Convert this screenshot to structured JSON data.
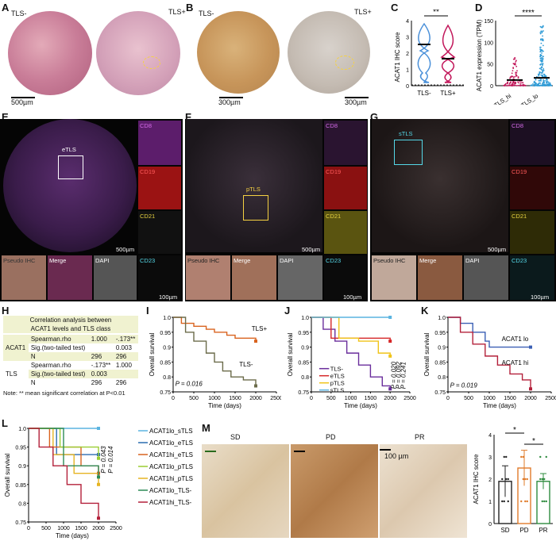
{
  "panels": {
    "A": {
      "label": "A",
      "left_title": "TLS-",
      "right_title": "TLS+",
      "scalebar": "500µm"
    },
    "B": {
      "label": "B",
      "left_title": "TLS-",
      "right_title": "TLS+",
      "scalebar_left": "300µm",
      "scalebar_right": "300µm"
    },
    "C": {
      "label": "C",
      "sig": "**"
    },
    "D": {
      "label": "D",
      "sig": "****"
    },
    "E": {
      "label": "E",
      "roi": "eTLS",
      "scale_main": "500µm",
      "scale_sub": "100µm",
      "sub_labels": [
        "CD8",
        "CD19",
        "CD21",
        "CD23",
        "Pseudo IHC",
        "Merge",
        "DAPI"
      ]
    },
    "F": {
      "label": "F",
      "roi": "pTLS",
      "scale_main": "500µm",
      "scale_sub": "100µm",
      "sub_labels": [
        "CD8",
        "CD19",
        "CD21",
        "CD23",
        "Pseudo IHC",
        "Merge",
        "DAPI"
      ]
    },
    "G": {
      "label": "G",
      "roi": "sTLS",
      "scale_main": "500µm",
      "scale_sub": "100µm",
      "sub_labels": [
        "CD8",
        "CD19",
        "CD21",
        "CD23",
        "Pseudo IHC",
        "Merge",
        "DAPI"
      ]
    },
    "H": {
      "label": "H",
      "title1": "Correlation analysis between",
      "title2": "ACAT1 levels and TLS class",
      "row_acat1": "ACAT1",
      "row_tls": "TLS",
      "rows": [
        {
          "k": "Spearman.rho",
          "a": "1.000",
          "b": "-.173**"
        },
        {
          "k": "Sig.(two-tailed test)",
          "a": "",
          "b": "0.003"
        },
        {
          "k": "N",
          "a": "296",
          "b": "296"
        },
        {
          "k": "Spearman.rho",
          "a": "-.173**",
          "b": "1.000"
        },
        {
          "k": "Sig.(two-tailed test)",
          "a": "0.003",
          "b": ""
        },
        {
          "k": "N",
          "a": "296",
          "b": "296"
        }
      ],
      "note": "Note: ** mean significant correlation at P<0.01"
    },
    "I": {
      "label": "I"
    },
    "J": {
      "label": "J"
    },
    "K": {
      "label": "K"
    },
    "L": {
      "label": "L"
    },
    "M": {
      "label": "M",
      "img_labels": [
        "SD",
        "PD",
        "PR"
      ],
      "scalebar": "100 µm",
      "sig1": "*",
      "sig2": "*"
    }
  },
  "chart_data": [
    {
      "id": "C",
      "type": "violin",
      "ylabel": "ACAT1 IHC score",
      "categories": [
        "TLS-",
        "TLS+"
      ],
      "medians": [
        2,
        1
      ],
      "ylim": [
        0,
        4
      ],
      "yticks": [
        0,
        1,
        2,
        3,
        4
      ],
      "colors": [
        "#4a90d9",
        "#c2185b"
      ]
    },
    {
      "id": "D",
      "type": "scatter",
      "ylabel": "ACAT1 expression (TPM)",
      "categories": [
        "TLS_hi",
        "TLS_lo"
      ],
      "medians": [
        13,
        18
      ],
      "ylim": [
        0,
        150
      ],
      "yticks": [
        0,
        50,
        100,
        150
      ],
      "colors": [
        "#c2185b",
        "#2f9bd6"
      ]
    },
    {
      "id": "I",
      "type": "line",
      "ylabel": "Overall survival",
      "xlabel": "Time (days)",
      "xlim": [
        0,
        2500
      ],
      "ylim": [
        0.75,
        1.0
      ],
      "xticks": [
        0,
        500,
        1000,
        1500,
        2000,
        2500
      ],
      "yticks": [
        0.75,
        0.8,
        0.85,
        0.9,
        0.95,
        1.0
      ],
      "series": [
        {
          "name": "TLS+",
          "color": "#d9631f",
          "x": [
            0,
            200,
            500,
            800,
            1000,
            1300,
            1500,
            1800,
            2000
          ],
          "y": [
            1,
            0.98,
            0.97,
            0.96,
            0.95,
            0.94,
            0.93,
            0.93,
            0.92
          ]
        },
        {
          "name": "TLS-",
          "color": "#6b6b4a",
          "x": [
            0,
            300,
            500,
            800,
            1000,
            1200,
            1400,
            1700,
            2000
          ],
          "y": [
            1,
            0.95,
            0.92,
            0.88,
            0.85,
            0.82,
            0.8,
            0.79,
            0.77
          ]
        }
      ],
      "annotation": "P = 0.016"
    },
    {
      "id": "J",
      "type": "line",
      "ylabel": "Overall survival",
      "xlabel": "Time (days)",
      "xlim": [
        0,
        2500
      ],
      "ylim": [
        0.75,
        1.0
      ],
      "xticks": [
        0,
        500,
        1000,
        1500,
        2000,
        2500
      ],
      "yticks": [
        0.75,
        0.8,
        0.85,
        0.9,
        0.95,
        1.0
      ],
      "series": [
        {
          "name": "TLS-",
          "color": "#6a2e9c",
          "x": [
            0,
            300,
            600,
            900,
            1200,
            1500,
            1800,
            2000
          ],
          "y": [
            1,
            0.96,
            0.92,
            0.88,
            0.84,
            0.8,
            0.77,
            0.76
          ]
        },
        {
          "name": "eTLS",
          "color": "#d62728",
          "x": [
            0,
            500,
            900,
            1500,
            2000
          ],
          "y": [
            1,
            0.93,
            0.93,
            0.93,
            0.92
          ]
        },
        {
          "name": "pTLS",
          "color": "#f0c419",
          "x": [
            0,
            700,
            1200,
            1700,
            2000
          ],
          "y": [
            1,
            0.93,
            0.92,
            0.88,
            0.87
          ]
        },
        {
          "name": "sTLS",
          "color": "#5ab4e0",
          "x": [
            0,
            1000,
            2000
          ],
          "y": [
            1,
            1,
            1
          ]
        }
      ],
      "annotations": [
        "P = 0.020",
        "P = 0.092",
        "P = 0.241"
      ]
    },
    {
      "id": "K",
      "type": "line",
      "ylabel": "Overall survival",
      "xlabel": "Time (days)",
      "xlim": [
        0,
        2500
      ],
      "ylim": [
        0.75,
        1.0
      ],
      "xticks": [
        0,
        500,
        1000,
        1500,
        2000,
        2500
      ],
      "yticks": [
        0.75,
        0.8,
        0.85,
        0.9,
        0.95,
        1.0
      ],
      "series": [
        {
          "name": "ACAT1 lo",
          "color": "#3a5fb4",
          "x": [
            0,
            300,
            600,
            900,
            1000,
            1500,
            2000
          ],
          "y": [
            1,
            0.98,
            0.95,
            0.92,
            0.9,
            0.9,
            0.9
          ]
        },
        {
          "name": "ACAT1 hi",
          "color": "#b3203a",
          "x": [
            0,
            300,
            600,
            900,
            1200,
            1500,
            1800,
            2000
          ],
          "y": [
            1,
            0.95,
            0.91,
            0.87,
            0.84,
            0.81,
            0.79,
            0.76
          ]
        }
      ],
      "annotation": "P = 0.019"
    },
    {
      "id": "L",
      "type": "line",
      "ylabel": "Overall survival",
      "xlabel": "Time (days)",
      "xlim": [
        0,
        2500
      ],
      "ylim": [
        0.75,
        1.0
      ],
      "xticks": [
        0,
        500,
        1000,
        1500,
        2000,
        2500
      ],
      "yticks": [
        0.75,
        0.8,
        0.85,
        0.9,
        0.95,
        1.0
      ],
      "series": [
        {
          "name": "ACAT1lo_sTLS",
          "color": "#5ab4e0",
          "x": [
            0,
            2000
          ],
          "y": [
            1,
            1
          ]
        },
        {
          "name": "ACAT1lo_eTLS",
          "color": "#2b6cb0",
          "x": [
            0,
            800,
            2000
          ],
          "y": [
            1,
            0.93,
            0.93
          ]
        },
        {
          "name": "ACAT1hi_eTLS",
          "color": "#d9631f",
          "x": [
            0,
            600,
            1500,
            2000
          ],
          "y": [
            1,
            0.95,
            0.9,
            0.88
          ]
        },
        {
          "name": "ACAT1lo_pTLS",
          "color": "#9acd32",
          "x": [
            0,
            900,
            2000
          ],
          "y": [
            1,
            0.95,
            0.92
          ]
        },
        {
          "name": "ACAT1hi_pTLS",
          "color": "#e6b422",
          "x": [
            0,
            700,
            1300,
            2000
          ],
          "y": [
            1,
            0.93,
            0.88,
            0.85
          ]
        },
        {
          "name": "ACAT1lo_TLS-",
          "color": "#2e8b57",
          "x": [
            0,
            1000,
            2000
          ],
          "y": [
            1,
            0.9,
            0.87
          ]
        },
        {
          "name": "ACAT1hi_TLS-",
          "color": "#b3203a",
          "x": [
            0,
            300,
            700,
            1100,
            1500,
            2000
          ],
          "y": [
            1,
            0.95,
            0.9,
            0.85,
            0.8,
            0.76
          ]
        }
      ],
      "annotations": [
        "P = 0.043",
        "P = 0.014"
      ]
    },
    {
      "id": "M",
      "type": "bar",
      "ylabel": "ACAT1 IHC score",
      "categories": [
        "SD",
        "PD",
        "PR"
      ],
      "values": [
        1.9,
        2.5,
        1.9
      ],
      "errors": [
        0.7,
        0.8,
        0.35
      ],
      "ylim": [
        0,
        4
      ],
      "yticks": [
        0,
        1,
        2,
        3,
        4
      ],
      "colors": [
        "#222222",
        "#e07b2a",
        "#2e8b3e"
      ]
    }
  ]
}
